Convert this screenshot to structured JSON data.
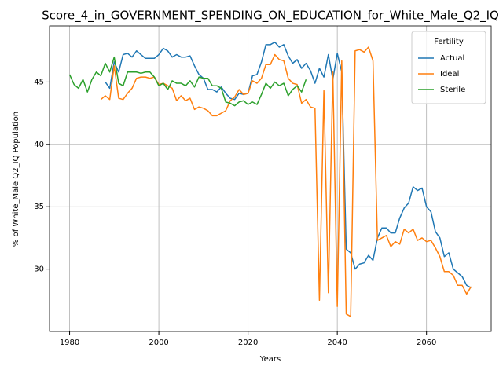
{
  "chart_data": {
    "type": "line",
    "title": "Score_4_in_GOVERNMENT_SPENDING_ON_EDUCATION_for_White_Male_Q2_IQ",
    "x_label": "Years",
    "y_label": "% of White_Male Q2_IQ Population",
    "x": [
      1980,
      1981,
      1982,
      1983,
      1984,
      1985,
      1986,
      1987,
      1988,
      1989,
      1990,
      1991,
      1992,
      1993,
      1994,
      1995,
      1996,
      1997,
      1998,
      1999,
      2000,
      2001,
      2002,
      2003,
      2004,
      2005,
      2006,
      2007,
      2008,
      2009,
      2010,
      2011,
      2012,
      2013,
      2014,
      2015,
      2016,
      2017,
      2018,
      2019,
      2020,
      2021,
      2022,
      2023,
      2024,
      2025,
      2026,
      2027,
      2028,
      2029,
      2030,
      2031,
      2032,
      2033,
      2034,
      2035,
      2036,
      2037,
      2038,
      2039,
      2040,
      2041,
      2042,
      2043,
      2044,
      2045,
      2046,
      2047,
      2048,
      2049,
      2050,
      2051,
      2052,
      2053,
      2054,
      2055,
      2056,
      2057,
      2058,
      2059,
      2060,
      2061,
      2062,
      2063,
      2064,
      2065,
      2066,
      2067,
      2068,
      2069,
      2070
    ],
    "series": [
      {
        "name": "Actual",
        "color": "#1f77b4",
        "values": [
          null,
          null,
          null,
          null,
          null,
          null,
          null,
          null,
          45.0,
          44.5,
          46.6,
          45.8,
          47.2,
          47.3,
          47.0,
          47.5,
          47.2,
          46.9,
          46.9,
          46.9,
          47.2,
          47.7,
          47.5,
          47.0,
          47.2,
          47.0,
          47.0,
          47.1,
          46.3,
          45.6,
          45.3,
          44.4,
          44.4,
          44.2,
          44.6,
          44.1,
          43.7,
          43.6,
          44.1,
          44.0,
          44.1,
          45.5,
          45.6,
          46.6,
          48.0,
          48.0,
          48.2,
          47.8,
          48.0,
          47.1,
          46.5,
          46.8,
          46.1,
          46.5,
          45.9,
          44.9,
          46.1,
          45.4,
          47.2,
          45.2,
          47.3,
          45.8,
          31.6,
          31.3,
          30.0,
          30.4,
          30.5,
          31.1,
          30.7,
          32.5,
          33.3,
          33.3,
          32.9,
          32.9,
          34.1,
          34.9,
          35.3,
          36.6,
          36.3,
          36.5,
          35.0,
          34.6,
          33.0,
          32.5,
          31.0,
          31.3,
          30.0,
          29.7,
          29.4,
          28.7,
          28.5
        ]
      },
      {
        "name": "Ideal",
        "color": "#ff7f0e",
        "values": [
          null,
          null,
          null,
          null,
          null,
          null,
          null,
          43.6,
          43.9,
          43.6,
          46.3,
          43.7,
          43.6,
          44.1,
          44.5,
          45.3,
          45.4,
          45.4,
          45.3,
          45.4,
          44.8,
          44.9,
          44.7,
          44.5,
          43.5,
          43.9,
          43.5,
          43.7,
          42.8,
          43.0,
          42.9,
          42.7,
          42.3,
          42.3,
          42.5,
          42.7,
          43.5,
          43.8,
          44.4,
          44.0,
          44.1,
          45.1,
          44.9,
          45.3,
          46.4,
          46.4,
          47.2,
          46.8,
          46.7,
          45.3,
          44.9,
          44.8,
          43.3,
          43.6,
          43.0,
          42.9,
          27.5,
          44.3,
          28.1,
          45.8,
          27.0,
          46.7,
          26.4,
          26.2,
          47.5,
          47.6,
          47.4,
          47.8,
          46.7,
          32.3,
          32.5,
          32.7,
          31.8,
          32.2,
          32.0,
          33.2,
          32.9,
          33.2,
          32.3,
          32.5,
          32.2,
          32.3,
          31.7,
          31.0,
          29.8,
          29.8,
          29.5,
          28.7,
          28.7,
          28.0,
          28.6
        ]
      },
      {
        "name": "Sterile",
        "color": "#2ca02c",
        "values": [
          45.6,
          44.8,
          44.5,
          45.2,
          44.2,
          45.2,
          45.8,
          45.5,
          46.5,
          45.8,
          47.0,
          44.9,
          44.7,
          45.8,
          45.8,
          45.8,
          45.7,
          45.8,
          45.8,
          45.4,
          44.7,
          44.9,
          44.4,
          45.1,
          44.9,
          44.9,
          44.7,
          45.1,
          44.6,
          45.4,
          45.3,
          45.3,
          44.7,
          44.7,
          44.5,
          43.4,
          43.3,
          43.1,
          43.4,
          43.5,
          43.2,
          43.4,
          43.2,
          44.0,
          44.9,
          44.5,
          45.0,
          44.7,
          44.9,
          43.9,
          44.4,
          44.7,
          44.2,
          45.2,
          null,
          null,
          null,
          null,
          null,
          null,
          null,
          null,
          null,
          null,
          null,
          null,
          null,
          null,
          null,
          null,
          null,
          null,
          null,
          null,
          null,
          null,
          null,
          null,
          null,
          null,
          null,
          null,
          null,
          null,
          null,
          null,
          null,
          null,
          null,
          null,
          null
        ]
      }
    ],
    "legend_title": "Fertility",
    "legend": "upper right",
    "xlim": [
      1975.5,
      2074.5
    ],
    "ylim": [
      25.0,
      49.5
    ],
    "xticks": [
      1980,
      2000,
      2020,
      2040,
      2060
    ],
    "yticks": [
      30,
      35,
      40,
      45
    ],
    "grid": true
  }
}
